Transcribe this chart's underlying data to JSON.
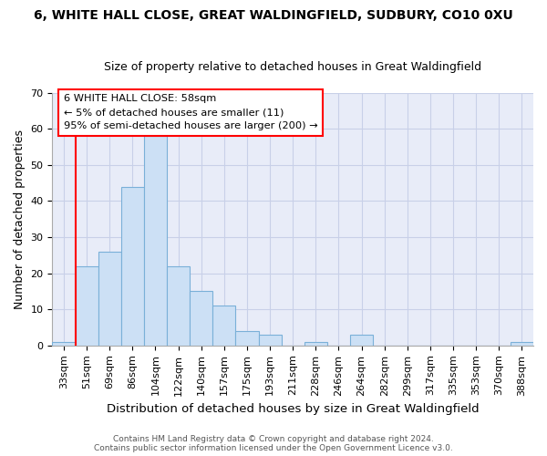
{
  "title": "6, WHITE HALL CLOSE, GREAT WALDINGFIELD, SUDBURY, CO10 0XU",
  "subtitle": "Size of property relative to detached houses in Great Waldingfield",
  "xlabel": "Distribution of detached houses by size in Great Waldingfield",
  "ylabel": "Number of detached properties",
  "footer_line1": "Contains HM Land Registry data © Crown copyright and database right 2024.",
  "footer_line2": "Contains public sector information licensed under the Open Government Licence v3.0.",
  "bins": [
    "33sqm",
    "51sqm",
    "69sqm",
    "86sqm",
    "104sqm",
    "122sqm",
    "140sqm",
    "157sqm",
    "175sqm",
    "193sqm",
    "211sqm",
    "228sqm",
    "246sqm",
    "264sqm",
    "282sqm",
    "299sqm",
    "317sqm",
    "335sqm",
    "353sqm",
    "370sqm",
    "388sqm"
  ],
  "counts": [
    1,
    22,
    26,
    44,
    58,
    22,
    15,
    11,
    4,
    3,
    0,
    1,
    0,
    3,
    0,
    0,
    0,
    0,
    0,
    0,
    1
  ],
  "bar_color": "#cce0f5",
  "bar_edge_color": "#7ab0d8",
  "red_line_x": 1,
  "annotation_line1": "6 WHITE HALL CLOSE: 58sqm",
  "annotation_line2": "← 5% of detached houses are smaller (11)",
  "annotation_line3": "95% of semi-detached houses are larger (200) →",
  "ylim": [
    0,
    70
  ],
  "yticks": [
    0,
    10,
    20,
    30,
    40,
    50,
    60,
    70
  ],
  "grid_color": "#c8d0e8",
  "bg_color": "#e8ecf8",
  "title_fontsize": 10,
  "subtitle_fontsize": 9,
  "xlabel_fontsize": 9.5,
  "ylabel_fontsize": 9,
  "tick_fontsize": 8,
  "footer_fontsize": 6.5
}
